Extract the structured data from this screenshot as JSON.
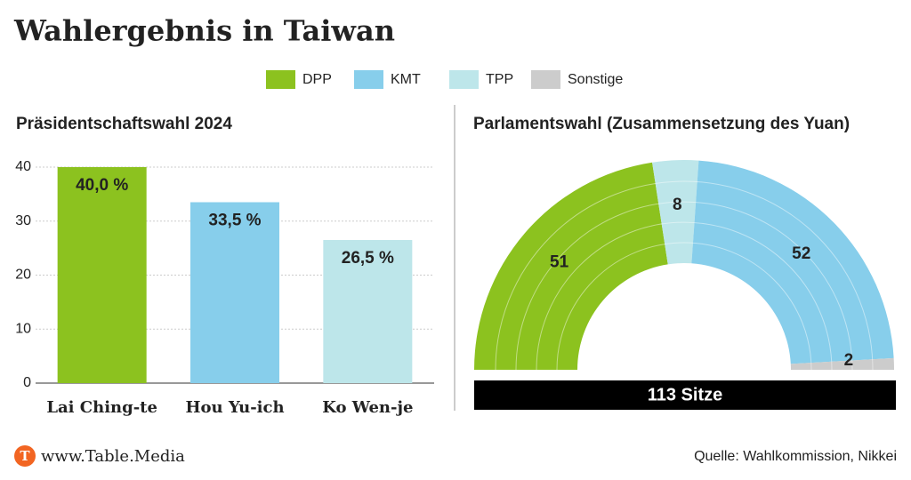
{
  "title": "Wahlergebnis in Taiwan",
  "legend": [
    {
      "name": "DPP",
      "color": "#8cc21f"
    },
    {
      "name": "KMT",
      "color": "#87ceeb"
    },
    {
      "name": "TPP",
      "color": "#bde6ea"
    },
    {
      "name": "Sonstige",
      "color": "#cccccc"
    }
  ],
  "chart_data": [
    {
      "type": "bar",
      "title": "Präsidentschaftswahl 2024",
      "categories": [
        "Lai Ching-te",
        "Hou Yu-ich",
        "Ko Wen-je"
      ],
      "values": [
        40.0,
        33.5,
        26.5
      ],
      "value_labels": [
        "40,0 %",
        "33,5 %",
        "26,5 %"
      ],
      "colors": [
        "#8cc21f",
        "#87ceeb",
        "#bde6ea"
      ],
      "ylim": [
        0,
        40
      ],
      "yticks": [
        0,
        10,
        20,
        30,
        40
      ],
      "grid": true
    },
    {
      "type": "parliament",
      "title": "Parlamentswahl (Zusammensetzung des Yuan)",
      "values": [
        51,
        8,
        52,
        2
      ],
      "colors": [
        "#8cc21f",
        "#bde6ea",
        "#87ceeb",
        "#cccccc"
      ],
      "total_label": "113 Sitze"
    }
  ],
  "brand": "www.Table.Media",
  "brand_logo": "T",
  "source": "Quelle: Wahlkommission, Nikkei"
}
